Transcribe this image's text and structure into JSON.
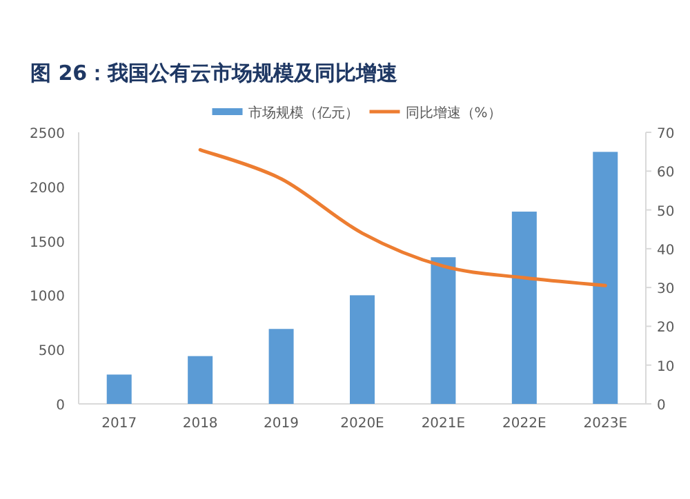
{
  "chart_data": {
    "type": "bar",
    "title": "图 26：我国公有云市场规模及同比增速",
    "categories": [
      "2017",
      "2018",
      "2019",
      "2020E",
      "2021E",
      "2022E",
      "2023E"
    ],
    "series": [
      {
        "name": "市场规模（亿元）",
        "color": "#5b9bd5",
        "values": [
          270,
          440,
          690,
          1000,
          1350,
          1770,
          2320
        ]
      },
      {
        "name": "同比增速（%）",
        "type": "line",
        "axis": "y2",
        "color": "#ed7d31",
        "values": [
          null,
          65.5,
          58,
          44,
          35.5,
          32.5,
          30.5
        ]
      }
    ],
    "ylim": [
      0,
      2500
    ],
    "yticks": [
      0,
      500,
      1000,
      1500,
      2000,
      2500
    ],
    "y2lim": [
      0,
      70
    ],
    "y2ticks": [
      0,
      10,
      20,
      30,
      40,
      50,
      60,
      70
    ],
    "legend": "top",
    "marker": "none",
    "line_style": "solid"
  }
}
